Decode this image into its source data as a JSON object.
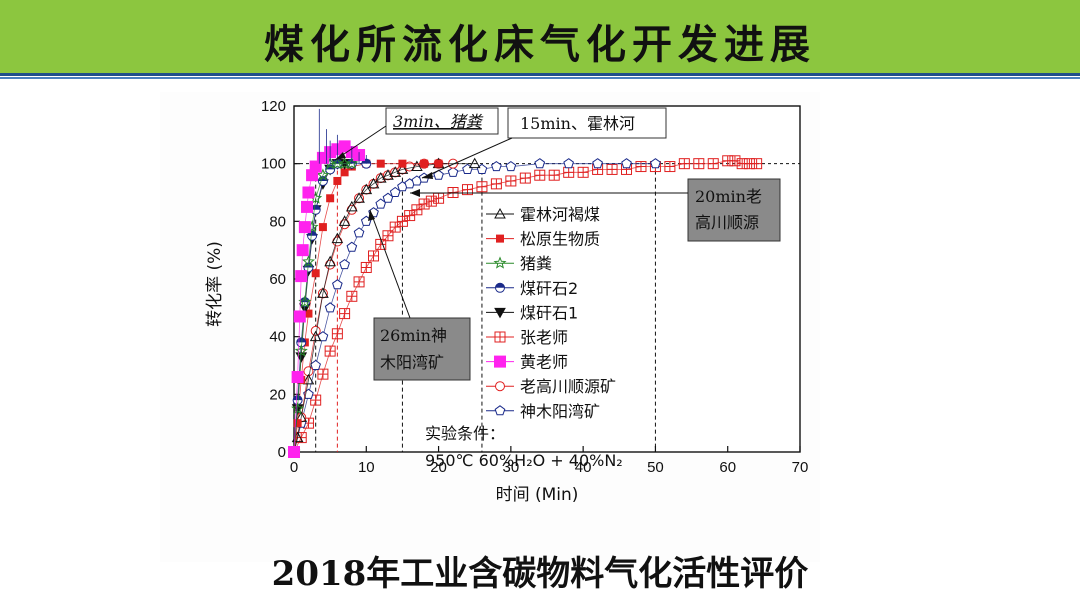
{
  "slide": {
    "title": "煤化所流化床气化开发进展",
    "caption": "2018年工业含碳物料气化活性评价"
  },
  "colors": {
    "title_bar": "#8cc63f",
    "rule": "#1f4e8c",
    "red": "#e02020",
    "magenta": "#ff22ee",
    "blue": "#1a2a8a",
    "green": "#2a8a2a",
    "black": "#111111"
  },
  "chart_data": {
    "type": "scatter",
    "xlabel": "时间 (Min)",
    "ylabel": "转化率 (%)",
    "xlim": [
      0,
      70
    ],
    "ylim": [
      0,
      120
    ],
    "xticks": [
      0,
      10,
      20,
      30,
      40,
      50,
      60,
      70
    ],
    "yticks": [
      0,
      20,
      40,
      60,
      80,
      100,
      120
    ],
    "reference_line_y": 100,
    "vertical_markers": [
      3,
      6,
      15,
      26,
      50
    ],
    "series": [
      {
        "name": "霍林河褐煤",
        "marker": "triangle-open",
        "color": "#111111",
        "x": [
          0,
          0.5,
          1,
          2,
          3,
          4,
          5,
          6,
          7,
          8,
          9,
          10,
          11,
          12,
          13,
          14,
          15,
          17,
          20,
          25
        ],
        "y": [
          0,
          5,
          12,
          25,
          40,
          55,
          66,
          74,
          80,
          85,
          88,
          91,
          93,
          95,
          96,
          97,
          98,
          99,
          100,
          100
        ]
      },
      {
        "name": "松原生物质",
        "marker": "square-filled",
        "color": "#e02020",
        "x": [
          0,
          0.5,
          1,
          1.5,
          2,
          3,
          4,
          5,
          6,
          7,
          8,
          10,
          12,
          15,
          18,
          20
        ],
        "y": [
          0,
          10,
          25,
          38,
          48,
          62,
          78,
          88,
          94,
          97,
          99,
          100,
          100,
          100,
          100,
          100
        ]
      },
      {
        "name": "猪粪",
        "marker": "star-open",
        "color": "#2a8a2a",
        "x": [
          0,
          0.5,
          1,
          1.5,
          2,
          2.5,
          3,
          4,
          5,
          6,
          7,
          8
        ],
        "y": [
          0,
          15,
          35,
          52,
          66,
          78,
          88,
          96,
          100,
          100,
          100,
          100
        ]
      },
      {
        "name": "煤矸石2",
        "marker": "circle-half",
        "color": "#1a2a8a",
        "x": [
          0,
          0.5,
          1,
          1.5,
          2,
          2.5,
          3,
          4,
          5,
          6,
          8,
          10
        ],
        "y": [
          0,
          18,
          38,
          52,
          64,
          75,
          84,
          94,
          98,
          100,
          100,
          100
        ]
      },
      {
        "name": "煤矸石1",
        "marker": "triangle-down-filled",
        "color": "#111111",
        "x": [
          0,
          0.5,
          1,
          1.5,
          2,
          2.5,
          3,
          4,
          5,
          6,
          7,
          8
        ],
        "y": [
          0,
          15,
          33,
          50,
          63,
          74,
          84,
          93,
          98,
          100,
          100,
          100
        ]
      },
      {
        "name": "张老师",
        "marker": "square-cross",
        "color": "#e02020",
        "x": [
          0,
          1,
          2,
          3,
          4,
          5,
          6,
          7,
          8,
          9,
          10,
          11,
          12,
          13,
          14,
          15,
          16,
          17,
          18,
          19,
          20,
          22,
          24,
          26,
          28,
          30,
          32,
          34,
          36,
          38,
          40,
          42,
          44,
          46,
          48,
          50,
          52,
          54,
          56,
          58,
          60,
          61,
          62,
          63,
          64
        ],
        "y": [
          0,
          5,
          10,
          18,
          27,
          35,
          41,
          48,
          54,
          59,
          64,
          68,
          72,
          75,
          78,
          80,
          82,
          84,
          86,
          87,
          88,
          90,
          91,
          92,
          93,
          94,
          95,
          96,
          96,
          97,
          97,
          98,
          98,
          98,
          99,
          99,
          99,
          100,
          100,
          100,
          101,
          101,
          100,
          100,
          100
        ]
      },
      {
        "name": "黄老师",
        "marker": "square-filled-large",
        "color": "#ff22ee",
        "x": [
          0,
          0.5,
          0.8,
          1,
          1.2,
          1.5,
          1.8,
          2,
          2.5,
          3,
          4,
          5,
          6,
          7,
          8,
          9
        ],
        "y": [
          0,
          26,
          47,
          61,
          70,
          78,
          85,
          90,
          96,
          99,
          102,
          104,
          105,
          106,
          104,
          103
        ]
      },
      {
        "name": "老高川顺源矿",
        "marker": "circle-open",
        "color": "#e02020",
        "x": [
          0,
          1,
          2,
          3,
          4,
          5,
          6,
          7,
          8,
          9,
          10,
          11,
          12,
          13,
          14,
          15,
          16,
          18,
          20,
          22
        ],
        "y": [
          0,
          12,
          28,
          42,
          55,
          65,
          73,
          79,
          84,
          88,
          91,
          93,
          95,
          96,
          97,
          98,
          99,
          100,
          100,
          100
        ]
      },
      {
        "name": "神木阳湾矿",
        "marker": "pentagon-open",
        "color": "#1a2a8a",
        "x": [
          0,
          1,
          2,
          3,
          4,
          5,
          6,
          7,
          8,
          9,
          10,
          11,
          12,
          13,
          14,
          15,
          16,
          17,
          18,
          20,
          22,
          24,
          26,
          28,
          30,
          34,
          38,
          42,
          46,
          50
        ],
        "y": [
          0,
          10,
          20,
          30,
          40,
          50,
          58,
          65,
          71,
          76,
          80,
          83,
          86,
          88,
          90,
          92,
          93,
          94,
          95,
          96,
          97,
          98,
          98,
          99,
          99,
          100,
          100,
          100,
          100,
          100
        ]
      }
    ],
    "annotations": [
      {
        "text": "3min、猪粪"
      },
      {
        "text": "15min、霍林河"
      },
      {
        "text": "20min老",
        "text2": "高川顺源"
      },
      {
        "text": "26min神",
        "text2": "木阳湾矿"
      }
    ],
    "conditions": {
      "line1": "实验条件：",
      "line2": "950℃ 60%H₂O + 40%N₂"
    }
  }
}
